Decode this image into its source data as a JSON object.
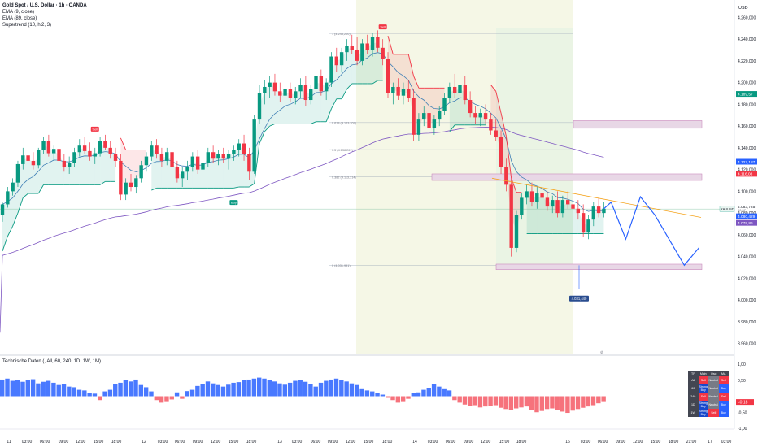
{
  "legend": {
    "symbol": "Gold Spot / U.S. Dollar · 1h · OANDA",
    "ema_fast": "EMA (9, close)",
    "ema_slow": "EMA (89, close)",
    "supertrend": "Supertrend (10, hl2, 3)"
  },
  "currency": "USD",
  "indicator_title": "Technische Daten (, All, 60, 240, 1D, 1W, 1M)",
  "colors": {
    "up": "#089981",
    "down": "#f23645",
    "ema_fast": "#3f7fb5",
    "ema_slow": "#7e57c2",
    "supertrend_up": "#089981",
    "supertrend_down": "#f23645",
    "zone": "#e8d7e6",
    "ind_pos": "#2962ff",
    "ind_neg": "#f23645",
    "trend_line": "#f5a623"
  },
  "chart_data": {
    "type": "candlestick",
    "price_axis": {
      "range": [
        3950,
        4270
      ],
      "ticks": [
        "4.260,000",
        "4.240,000",
        "4.220,000",
        "4.200,000",
        "4.180,000",
        "4.160,000",
        "4.140,000",
        "4.120,000",
        "4.100,000",
        "4.080,000",
        "4.060,000",
        "4.040,000",
        "4.020,000",
        "4.000,000",
        "3.980,000",
        "3.960,000"
      ]
    },
    "time_axis": [
      "11",
      "03:00",
      "06:00",
      "09:00",
      "12:00",
      "15:00",
      "18:00",
      "12",
      "03:00",
      "06:00",
      "09:00",
      "12:00",
      "15:00",
      "18:00",
      "13",
      "03:00",
      "06:00",
      "09:00",
      "12:00",
      "15:00",
      "18:00",
      "14",
      "03:00",
      "06:00",
      "09:00",
      "12:00",
      "15:00",
      "18:00",
      "16",
      "03:00",
      "06:00",
      "09:00",
      "12:00",
      "15:00",
      "18:00",
      "21:00",
      "17",
      "03:00",
      "06:00"
    ],
    "price_labels": {
      "h1": "4.189,57",
      "h2": "4.127,187",
      "h3": "4.116,08",
      "current_symbol": "XAUUSD",
      "current": "4.083,725",
      "current_sub": "00:57",
      "l1": "4.080,429",
      "l2": "4.079,86",
      "target": "4.031,440"
    },
    "fib_levels": [
      {
        "label": "1 (4.245,200)",
        "price": 4245.2
      },
      {
        "label": "0.618 (4.163,209)",
        "price": 4163.2
      },
      {
        "label": "0.5 (4.138,261)",
        "price": 4138.3
      },
      {
        "label": "0.382 (4.113,314)",
        "price": 4113.3
      },
      {
        "label": "0 (4.031,991)",
        "price": 4032.0
      }
    ],
    "signals": [
      "Sell",
      "Buy",
      "Sell"
    ],
    "candles": [
      [
        4078,
        4090,
        4072,
        4088
      ],
      [
        4088,
        4104,
        4085,
        4100
      ],
      [
        4100,
        4112,
        4096,
        4108
      ],
      [
        4108,
        4128,
        4104,
        4125
      ],
      [
        4125,
        4140,
        4120,
        4133
      ],
      [
        4133,
        4142,
        4126,
        4128
      ],
      [
        4128,
        4136,
        4120,
        4124
      ],
      [
        4124,
        4140,
        4121,
        4138
      ],
      [
        4138,
        4150,
        4134,
        4146
      ],
      [
        4146,
        4152,
        4132,
        4135
      ],
      [
        4135,
        4142,
        4128,
        4139
      ],
      [
        4139,
        4146,
        4124,
        4128
      ],
      [
        4128,
        4134,
        4118,
        4122
      ],
      [
        4122,
        4132,
        4116,
        4126
      ],
      [
        4126,
        4140,
        4122,
        4136
      ],
      [
        4136,
        4148,
        4132,
        4142
      ],
      [
        4142,
        4150,
        4134,
        4137
      ],
      [
        4137,
        4145,
        4128,
        4132
      ],
      [
        4132,
        4140,
        4125,
        4135
      ],
      [
        4135,
        4150,
        4132,
        4146
      ],
      [
        4146,
        4152,
        4138,
        4140
      ],
      [
        4140,
        4146,
        4130,
        4134
      ],
      [
        4134,
        4140,
        4122,
        4128
      ],
      [
        4128,
        4134,
        4092,
        4097
      ],
      [
        4097,
        4112,
        4092,
        4108
      ],
      [
        4108,
        4116,
        4100,
        4104
      ],
      [
        4104,
        4115,
        4098,
        4112
      ],
      [
        4112,
        4128,
        4108,
        4124
      ],
      [
        4124,
        4136,
        4118,
        4132
      ],
      [
        4132,
        4146,
        4128,
        4142
      ],
      [
        4142,
        4148,
        4130,
        4134
      ],
      [
        4134,
        4140,
        4122,
        4128
      ],
      [
        4128,
        4140,
        4124,
        4136
      ],
      [
        4136,
        4142,
        4118,
        4122
      ],
      [
        4122,
        4128,
        4108,
        4112
      ],
      [
        4112,
        4122,
        4104,
        4118
      ],
      [
        4118,
        4128,
        4110,
        4122
      ],
      [
        4122,
        4136,
        4118,
        4132
      ],
      [
        4132,
        4138,
        4116,
        4120
      ],
      [
        4120,
        4130,
        4112,
        4126
      ],
      [
        4126,
        4140,
        4122,
        4136
      ],
      [
        4136,
        4142,
        4126,
        4130
      ],
      [
        4130,
        4138,
        4124,
        4134
      ],
      [
        4134,
        4140,
        4126,
        4130
      ],
      [
        4130,
        4138,
        4120,
        4134
      ],
      [
        4134,
        4142,
        4128,
        4138
      ],
      [
        4138,
        4148,
        4132,
        4144
      ],
      [
        4144,
        4152,
        4128,
        4134
      ],
      [
        4134,
        4140,
        4110,
        4118
      ],
      [
        4118,
        4170,
        4116,
        4166
      ],
      [
        4166,
        4198,
        4162,
        4190
      ],
      [
        4190,
        4202,
        4180,
        4196
      ],
      [
        4196,
        4206,
        4186,
        4200
      ],
      [
        4200,
        4208,
        4188,
        4192
      ],
      [
        4192,
        4200,
        4182,
        4188
      ],
      [
        4188,
        4198,
        4180,
        4194
      ],
      [
        4194,
        4200,
        4182,
        4186
      ],
      [
        4186,
        4196,
        4180,
        4192
      ],
      [
        4192,
        4204,
        4186,
        4198
      ],
      [
        4198,
        4206,
        4178,
        4184
      ],
      [
        4184,
        4198,
        4180,
        4194
      ],
      [
        4194,
        4210,
        4190,
        4206
      ],
      [
        4206,
        4212,
        4188,
        4192
      ],
      [
        4192,
        4204,
        4184,
        4200
      ],
      [
        4200,
        4228,
        4196,
        4224
      ],
      [
        4224,
        4232,
        4210,
        4216
      ],
      [
        4216,
        4232,
        4210,
        4228
      ],
      [
        4228,
        4240,
        4220,
        4234
      ],
      [
        4234,
        4244,
        4226,
        4230
      ],
      [
        4230,
        4242,
        4216,
        4220
      ],
      [
        4220,
        4240,
        4216,
        4236
      ],
      [
        4236,
        4244,
        4226,
        4230
      ],
      [
        4230,
        4246,
        4224,
        4242
      ],
      [
        4242,
        4248,
        4228,
        4232
      ],
      [
        4232,
        4240,
        4216,
        4222
      ],
      [
        4222,
        4228,
        4186,
        4190
      ],
      [
        4190,
        4200,
        4180,
        4196
      ],
      [
        4196,
        4204,
        4184,
        4188
      ],
      [
        4188,
        4200,
        4180,
        4194
      ],
      [
        4194,
        4202,
        4182,
        4186
      ],
      [
        4186,
        4194,
        4146,
        4152
      ],
      [
        4152,
        4172,
        4146,
        4166
      ],
      [
        4166,
        4178,
        4160,
        4172
      ],
      [
        4172,
        4182,
        4152,
        4158
      ],
      [
        4158,
        4170,
        4152,
        4166
      ],
      [
        4166,
        4178,
        4160,
        4174
      ],
      [
        4174,
        4190,
        4170,
        4186
      ],
      [
        4186,
        4200,
        4182,
        4196
      ],
      [
        4196,
        4208,
        4186,
        4190
      ],
      [
        4190,
        4202,
        4184,
        4198
      ],
      [
        4198,
        4206,
        4180,
        4184
      ],
      [
        4184,
        4192,
        4168,
        4172
      ],
      [
        4172,
        4178,
        4162,
        4168
      ],
      [
        4168,
        4176,
        4160,
        4172
      ],
      [
        4172,
        4180,
        4162,
        4166
      ],
      [
        4166,
        4172,
        4152,
        4156
      ],
      [
        4156,
        4166,
        4146,
        4150
      ],
      [
        4150,
        4156,
        4116,
        4122
      ],
      [
        4122,
        4130,
        4100,
        4106
      ],
      [
        4106,
        4112,
        4040,
        4048
      ],
      [
        4048,
        4082,
        4044,
        4078
      ],
      [
        4078,
        4098,
        4074,
        4094
      ],
      [
        4094,
        4106,
        4088,
        4100
      ],
      [
        4100,
        4108,
        4086,
        4090
      ],
      [
        4090,
        4104,
        4084,
        4098
      ],
      [
        4098,
        4106,
        4088,
        4094
      ],
      [
        4094,
        4100,
        4082,
        4086
      ],
      [
        4086,
        4096,
        4080,
        4092
      ],
      [
        4092,
        4100,
        4076,
        4080
      ],
      [
        4080,
        4096,
        4076,
        4092
      ],
      [
        4092,
        4100,
        4084,
        4088
      ],
      [
        4088,
        4096,
        4078,
        4084
      ],
      [
        4084,
        4092,
        4074,
        4080
      ],
      [
        4080,
        4088,
        4058,
        4062
      ],
      [
        4062,
        4078,
        4056,
        4074
      ],
      [
        4074,
        4090,
        4068,
        4086
      ],
      [
        4086,
        4094,
        4076,
        4080
      ],
      [
        4080,
        4090,
        4076,
        4084
      ]
    ],
    "projection": [
      [
        4090,
        1
      ],
      [
        4056,
        3
      ],
      [
        4095,
        5
      ],
      [
        4078,
        7
      ],
      [
        4032,
        11
      ],
      [
        4048,
        13
      ]
    ],
    "indicator": {
      "range": [
        -1.0,
        1.0
      ],
      "ticks": [
        "1,00",
        "0,50",
        "-0,50",
        "-1,00"
      ],
      "value_label": "-0,18",
      "values": [
        0.52,
        0.55,
        0.48,
        0.5,
        0.45,
        0.5,
        0.53,
        0.4,
        0.45,
        0.48,
        0.42,
        0.35,
        0.38,
        0.3,
        0.28,
        0.2,
        0.18,
        0.1,
        0.08,
        -0.12,
        0.15,
        0.2,
        0.38,
        0.42,
        0.5,
        0.46,
        0.52,
        0.35,
        0.28,
        0.15,
        -0.12,
        -0.2,
        -0.18,
        -0.1,
        0.12,
        -0.08,
        0.16,
        0.2,
        0.32,
        0.38,
        0.46,
        0.4,
        0.35,
        0.3,
        0.36,
        0.42,
        0.44,
        0.5,
        0.52,
        0.55,
        0.58,
        0.55,
        0.5,
        0.46,
        0.4,
        0.36,
        0.42,
        0.48,
        0.5,
        0.45,
        0.38,
        0.3,
        0.42,
        0.48,
        0.52,
        0.55,
        0.5,
        0.46,
        0.4,
        0.35,
        0.22,
        0.18,
        0.15,
        0.1,
        0.05,
        -0.05,
        -0.12,
        -0.2,
        -0.18,
        -0.08,
        0.1,
        0.12,
        0.2,
        0.25,
        0.38,
        0.3,
        0.22,
        0.18,
        -0.12,
        -0.2,
        -0.26,
        -0.3,
        -0.28,
        -0.35,
        -0.32,
        -0.3,
        -0.28,
        -0.36,
        -0.4,
        -0.42,
        -0.38,
        -0.35,
        -0.32,
        -0.44,
        -0.5,
        -0.46,
        -0.4,
        -0.38,
        -0.42,
        -0.48,
        -0.52,
        -0.45,
        -0.4,
        -0.36,
        -0.32,
        -0.28,
        -0.22,
        -0.18
      ]
    }
  },
  "tech_table": {
    "header": [
      "TF",
      "Main",
      "Osc",
      "MA"
    ],
    "rows": [
      {
        "tf": "All",
        "main": "Sell",
        "osc": "Neutral",
        "ma": "Sell"
      },
      {
        "tf": "60",
        "main": "Strong Buy",
        "osc": "Neutral",
        "ma": "Buy"
      },
      {
        "tf": "240",
        "main": "Sell",
        "osc": "Neutral",
        "ma": "Sell"
      },
      {
        "tf": "1D",
        "main": "Strong Buy",
        "osc": "Neutral",
        "ma": "Buy"
      },
      {
        "tf": "1W",
        "main": "Strong Buy",
        "osc": "Sell",
        "ma": "Buy"
      }
    ]
  }
}
